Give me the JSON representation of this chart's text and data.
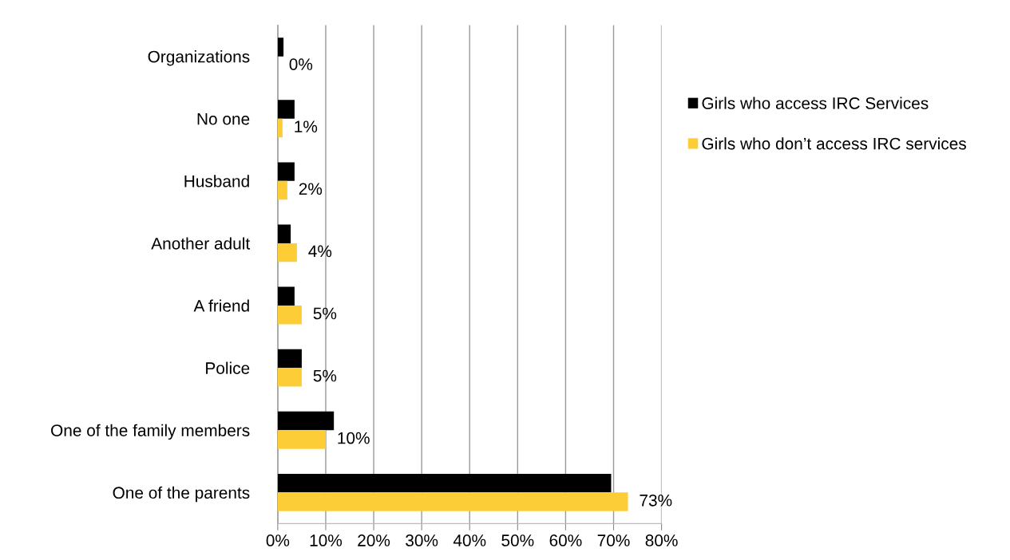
{
  "chart_data": {
    "type": "bar",
    "orientation": "horizontal",
    "categories": [
      "Organizations",
      "No one",
      "Husband",
      "Another adult",
      "A friend",
      "Police",
      "One of the family members",
      "One of the parents"
    ],
    "series": [
      {
        "name": "Girls who access IRC Services",
        "color": "#000000",
        "values": [
          1.2,
          3.5,
          3.5,
          2.7,
          3.5,
          5,
          11.7,
          69.5
        ]
      },
      {
        "name": "Girls who don’t access IRC services",
        "color": "#fdcd37",
        "values": [
          0,
          1,
          2,
          4,
          5,
          5,
          10,
          73
        ],
        "value_labels": [
          "0%",
          "1%",
          "2%",
          "4%",
          "5%",
          "5%",
          "10%",
          "73%"
        ]
      }
    ],
    "xlim": [
      0,
      80
    ],
    "xticks": [
      {
        "value": 0,
        "label": "0%"
      },
      {
        "value": 10,
        "label": "10%"
      },
      {
        "value": 20,
        "label": "20%"
      },
      {
        "value": 30,
        "label": "30%"
      },
      {
        "value": 40,
        "label": "40%"
      },
      {
        "value": 50,
        "label": "50%"
      },
      {
        "value": 60,
        "label": "60%"
      },
      {
        "value": 70,
        "label": "70%"
      },
      {
        "value": 80,
        "label": "80%"
      }
    ],
    "grid": "x",
    "legend": "right"
  }
}
